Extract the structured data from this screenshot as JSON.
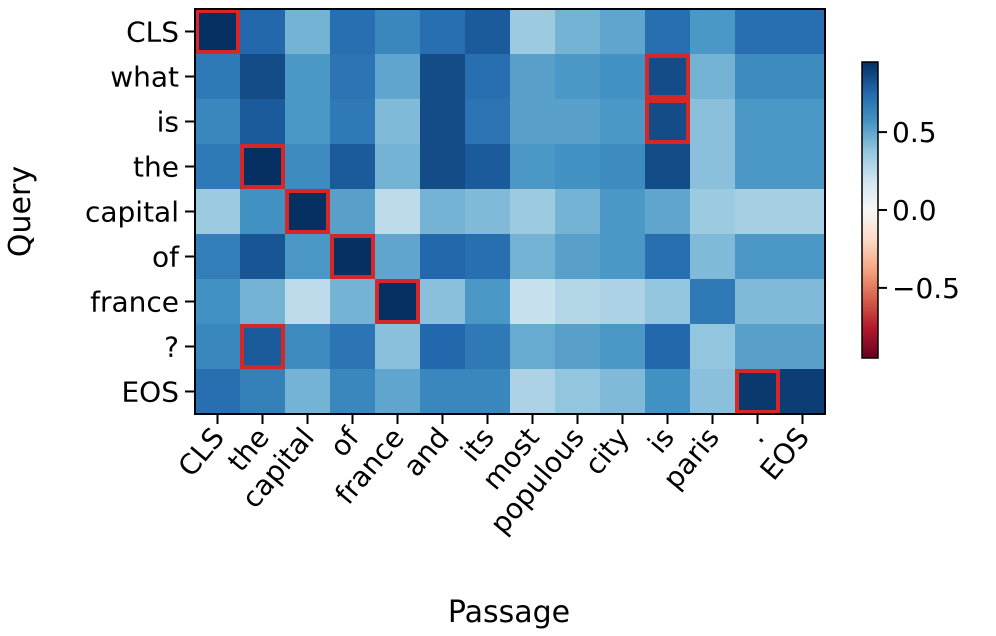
{
  "chart_data": {
    "type": "heatmap",
    "title": "",
    "xlabel": "Passage",
    "ylabel": "Query",
    "x_categories": [
      "CLS",
      "the",
      "capital",
      "of",
      "france",
      "and",
      "its",
      "most",
      "populous",
      "city",
      "is",
      "paris",
      ".",
      "EOS"
    ],
    "y_categories": [
      "CLS",
      "what",
      "is",
      "the",
      "capital",
      "of",
      "france",
      "?",
      "EOS"
    ],
    "values": [
      [
        0.95,
        0.75,
        0.45,
        0.72,
        0.62,
        0.72,
        0.8,
        0.35,
        0.45,
        0.5,
        0.72,
        0.55,
        0.72,
        0.72
      ],
      [
        0.68,
        0.85,
        0.55,
        0.7,
        0.5,
        0.85,
        0.72,
        0.52,
        0.55,
        0.58,
        0.85,
        0.45,
        0.6,
        0.6
      ],
      [
        0.62,
        0.8,
        0.55,
        0.68,
        0.42,
        0.85,
        0.7,
        0.52,
        0.52,
        0.55,
        0.85,
        0.4,
        0.55,
        0.55
      ],
      [
        0.68,
        0.95,
        0.6,
        0.8,
        0.45,
        0.85,
        0.8,
        0.55,
        0.58,
        0.6,
        0.85,
        0.4,
        0.55,
        0.55
      ],
      [
        0.35,
        0.58,
        0.98,
        0.52,
        0.25,
        0.45,
        0.42,
        0.35,
        0.45,
        0.55,
        0.5,
        0.35,
        0.32,
        0.32
      ],
      [
        0.66,
        0.82,
        0.55,
        0.95,
        0.5,
        0.75,
        0.72,
        0.45,
        0.52,
        0.55,
        0.72,
        0.42,
        0.55,
        0.55
      ],
      [
        0.58,
        0.45,
        0.25,
        0.45,
        0.98,
        0.4,
        0.55,
        0.22,
        0.28,
        0.3,
        0.38,
        0.68,
        0.42,
        0.42
      ],
      [
        0.62,
        0.8,
        0.6,
        0.7,
        0.4,
        0.75,
        0.68,
        0.48,
        0.52,
        0.55,
        0.75,
        0.38,
        0.52,
        0.52
      ],
      [
        0.72,
        0.65,
        0.45,
        0.62,
        0.5,
        0.62,
        0.62,
        0.3,
        0.38,
        0.42,
        0.58,
        0.4,
        0.92,
        0.9
      ]
    ],
    "highlighted_cells": [
      [
        0,
        0
      ],
      [
        1,
        10
      ],
      [
        2,
        10
      ],
      [
        3,
        1
      ],
      [
        4,
        2
      ],
      [
        5,
        3
      ],
      [
        6,
        4
      ],
      [
        7,
        1
      ],
      [
        8,
        12
      ]
    ],
    "highlight_color": "#d62728",
    "colormap": "RdBu",
    "vmin": -0.95,
    "vmax": 0.95,
    "colorbar_ticks": [
      0.5,
      0.0,
      -0.5
    ],
    "colorbar_tick_labels": [
      "0.5",
      "0.0",
      "−0.5"
    ],
    "grid": false
  }
}
